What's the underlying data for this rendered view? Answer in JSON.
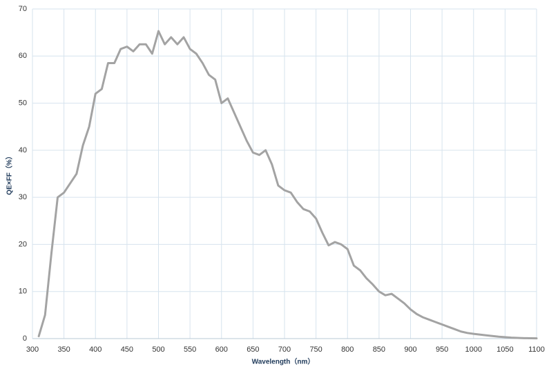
{
  "chart_data": {
    "type": "line",
    "x_label": "Wavelength（nm）",
    "y_label": "QE×FF（%）",
    "x": [
      310,
      320,
      330,
      340,
      350,
      360,
      370,
      380,
      390,
      400,
      410,
      420,
      430,
      440,
      450,
      460,
      470,
      480,
      490,
      500,
      510,
      520,
      530,
      540,
      550,
      560,
      570,
      580,
      590,
      600,
      610,
      620,
      630,
      640,
      650,
      660,
      670,
      680,
      690,
      700,
      710,
      720,
      730,
      740,
      750,
      760,
      770,
      780,
      790,
      800,
      810,
      820,
      830,
      840,
      850,
      860,
      870,
      880,
      890,
      900,
      910,
      920,
      930,
      940,
      950,
      960,
      970,
      980,
      990,
      1000,
      1020,
      1040,
      1060,
      1080,
      1100
    ],
    "series": [
      {
        "color": "#a3a3a3",
        "values": [
          0.5,
          5,
          18,
          30,
          31,
          33,
          35,
          41,
          45,
          52,
          53,
          58.5,
          58.5,
          61.5,
          62,
          61,
          62.5,
          62.5,
          60.5,
          65.3,
          62.5,
          64,
          62.5,
          64,
          61.5,
          60.5,
          58.5,
          56,
          55,
          50,
          51,
          48,
          45,
          42,
          39.5,
          39,
          40,
          37,
          32.5,
          31.5,
          31,
          29,
          27.5,
          27,
          25.5,
          22.5,
          19.8,
          20.5,
          20,
          19,
          15.5,
          14.5,
          12.8,
          11.5,
          10,
          9.2,
          9.5,
          8.5,
          7.5,
          6.2,
          5.2,
          4.5,
          4,
          3.5,
          3,
          2.5,
          2,
          1.5,
          1.2,
          1,
          0.7,
          0.4,
          0.2,
          0.1,
          0.05
        ]
      }
    ],
    "xlim": [
      300,
      1100
    ],
    "xticks": [
      300,
      350,
      400,
      450,
      500,
      550,
      600,
      650,
      700,
      750,
      800,
      850,
      900,
      950,
      1000,
      1050,
      1100
    ],
    "ylim": [
      0,
      70
    ],
    "yticks": [
      0,
      10,
      20,
      30,
      40,
      50,
      60,
      70
    ],
    "grid": true
  }
}
